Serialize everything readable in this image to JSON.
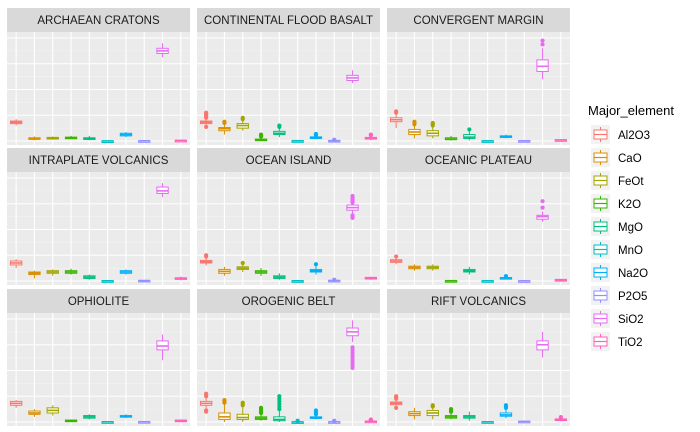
{
  "chart_data": {
    "type": "boxplot",
    "ylim": [
      0,
      80
    ],
    "grid": true,
    "legend": {
      "title": "Major_element",
      "placement": "right",
      "entries": [
        "Al2O3",
        "CaO",
        "FeOt",
        "K2O",
        "MgO",
        "MnO",
        "Na2O",
        "P2O5",
        "SiO2",
        "TiO2"
      ]
    },
    "colors": {
      "Al2O3": "#F8766D",
      "CaO": "#D89000",
      "FeOt": "#A3A500",
      "K2O": "#39B600",
      "MgO": "#00BF7D",
      "MnO": "#00BFC4",
      "Na2O": "#00B0F6",
      "P2O5": "#9590FF",
      "SiO2": "#E76BF3",
      "TiO2": "#FF62BC"
    },
    "categories": [
      "Al2O3",
      "CaO",
      "FeOt",
      "K2O",
      "MgO",
      "MnO",
      "Na2O",
      "P2O5",
      "SiO2",
      "TiO2"
    ],
    "panels": [
      {
        "title": "ARCHAEAN CRATONS",
        "boxes": [
          {
            "min": 12,
            "q1": 13.5,
            "med": 14.5,
            "q3": 15.5,
            "max": 17,
            "out": []
          },
          {
            "min": 0.5,
            "q1": 1.5,
            "med": 2,
            "q3": 2.5,
            "max": 3.5,
            "out": []
          },
          {
            "min": 1,
            "q1": 1.8,
            "med": 2.2,
            "q3": 2.8,
            "max": 3.5,
            "out": []
          },
          {
            "min": 1.5,
            "q1": 2,
            "med": 2.5,
            "q3": 3,
            "max": 4,
            "out": []
          },
          {
            "min": 0.5,
            "q1": 1.2,
            "med": 1.8,
            "q3": 2.5,
            "max": 4,
            "out": []
          },
          {
            "min": 0,
            "q1": 0.03,
            "med": 0.05,
            "q3": 0.08,
            "max": 0.15,
            "out": []
          },
          {
            "min": 3,
            "q1": 4,
            "med": 5,
            "q3": 6,
            "max": 7,
            "out": []
          },
          {
            "min": 0,
            "q1": 0.1,
            "med": 0.15,
            "q3": 0.2,
            "max": 0.4,
            "out": []
          },
          {
            "min": 65,
            "q1": 68,
            "med": 70,
            "q3": 72,
            "max": 76,
            "out": []
          },
          {
            "min": 0.1,
            "q1": 0.3,
            "med": 0.4,
            "q3": 0.55,
            "max": 0.9,
            "out": []
          }
        ]
      },
      {
        "title": "CONTINENTAL FLOOD BASALT",
        "boxes": [
          {
            "min": 12,
            "q1": 13.5,
            "med": 14.5,
            "q3": 15.5,
            "max": 17,
            "out": [
              11,
              18,
              19,
              20,
              21,
              22
            ]
          },
          {
            "min": 5,
            "q1": 8,
            "med": 9.5,
            "q3": 10.5,
            "max": 13,
            "out": [
              14,
              15
            ]
          },
          {
            "min": 8,
            "q1": 10,
            "med": 12,
            "q3": 13.5,
            "max": 16,
            "out": [
              17,
              18
            ]
          },
          {
            "min": 0,
            "q1": 0.5,
            "med": 1,
            "q3": 1.5,
            "max": 3,
            "out": [
              3.5,
              4,
              4.5,
              5
            ]
          },
          {
            "min": 3,
            "q1": 5,
            "med": 6,
            "q3": 7.5,
            "max": 10,
            "out": [
              11,
              12
            ]
          },
          {
            "min": 0,
            "q1": 0.15,
            "med": 0.18,
            "q3": 0.22,
            "max": 0.3,
            "out": []
          },
          {
            "min": 1.5,
            "q1": 2.3,
            "med": 2.7,
            "q3": 3.2,
            "max": 4.2,
            "out": [
              4.5,
              5,
              5.5
            ]
          },
          {
            "min": 0,
            "q1": 0.15,
            "med": 0.25,
            "q3": 0.4,
            "max": 0.7,
            "out": [
              0.8,
              1
            ]
          },
          {
            "min": 45,
            "q1": 47,
            "med": 49,
            "q3": 51,
            "max": 55,
            "out": []
          },
          {
            "min": 0.5,
            "q1": 1.5,
            "med": 2,
            "q3": 2.8,
            "max": 4,
            "out": [
              4.5,
              5
            ]
          }
        ]
      },
      {
        "title": "CONVERGENT MARGIN",
        "boxes": [
          {
            "min": 10,
            "q1": 15,
            "med": 16.5,
            "q3": 18,
            "max": 21,
            "out": [
              22,
              23
            ]
          },
          {
            "min": 2,
            "q1": 5,
            "med": 7,
            "q3": 9,
            "max": 12,
            "out": [
              13,
              14,
              15
            ]
          },
          {
            "min": 2,
            "q1": 4,
            "med": 6,
            "q3": 8,
            "max": 11,
            "out": [
              12,
              13,
              14
            ]
          },
          {
            "min": 0.5,
            "q1": 1,
            "med": 1.5,
            "q3": 2.5,
            "max": 4,
            "out": []
          },
          {
            "min": 0.5,
            "q1": 2,
            "med": 3,
            "q3": 5,
            "max": 8,
            "out": [
              9
            ]
          },
          {
            "min": 0,
            "q1": 0.1,
            "med": 0.12,
            "q3": 0.15,
            "max": 0.2,
            "out": []
          },
          {
            "min": 2,
            "q1": 3,
            "med": 3.5,
            "q3": 4,
            "max": 5,
            "out": []
          },
          {
            "min": 0,
            "q1": 0.1,
            "med": 0.15,
            "q3": 0.25,
            "max": 0.4,
            "out": []
          },
          {
            "min": 48,
            "q1": 54,
            "med": 58,
            "q3": 63,
            "max": 72,
            "out": [
              75,
              78
            ]
          },
          {
            "min": 0.3,
            "q1": 0.6,
            "med": 0.8,
            "q3": 1,
            "max": 1.5,
            "out": []
          }
        ]
      },
      {
        "title": "INTRAPLATE VOLCANICS",
        "boxes": [
          {
            "min": 10,
            "q1": 12.5,
            "med": 14,
            "q3": 15.5,
            "max": 17,
            "out": []
          },
          {
            "min": 2,
            "q1": 5,
            "med": 6,
            "q3": 7,
            "max": 8,
            "out": []
          },
          {
            "min": 4,
            "q1": 6,
            "med": 7,
            "q3": 8,
            "max": 9,
            "out": []
          },
          {
            "min": 5,
            "q1": 6,
            "med": 7,
            "q3": 8,
            "max": 9.5,
            "out": []
          },
          {
            "min": 1,
            "q1": 2,
            "med": 3,
            "q3": 4,
            "max": 5,
            "out": []
          },
          {
            "min": 0,
            "q1": 0.1,
            "med": 0.15,
            "q3": 0.2,
            "max": 0.3,
            "out": []
          },
          {
            "min": 5,
            "q1": 6,
            "med": 7,
            "q3": 8,
            "max": 9,
            "out": []
          },
          {
            "min": 0,
            "q1": 0.2,
            "med": 0.3,
            "q3": 0.5,
            "max": 0.8,
            "out": []
          },
          {
            "min": 65,
            "q1": 68,
            "med": 70,
            "q3": 73,
            "max": 76,
            "out": []
          },
          {
            "min": 0.5,
            "q1": 1.5,
            "med": 2,
            "q3": 2.5,
            "max": 3.5,
            "out": []
          }
        ]
      },
      {
        "title": "OCEAN ISLAND",
        "boxes": [
          {
            "min": 12,
            "q1": 14,
            "med": 15,
            "q3": 16,
            "max": 18,
            "out": [
              19,
              20
            ]
          },
          {
            "min": 4,
            "q1": 6,
            "med": 7.5,
            "q3": 9,
            "max": 11,
            "out": []
          },
          {
            "min": 7,
            "q1": 9,
            "med": 10,
            "q3": 11,
            "max": 13,
            "out": [
              14
            ]
          },
          {
            "min": 4,
            "q1": 6,
            "med": 7,
            "q3": 8,
            "max": 10,
            "out": []
          },
          {
            "min": 1,
            "q1": 2,
            "med": 3,
            "q3": 4,
            "max": 6,
            "out": []
          },
          {
            "min": 0,
            "q1": 0.1,
            "med": 0.15,
            "q3": 0.2,
            "max": 0.3,
            "out": []
          },
          {
            "min": 5,
            "q1": 7,
            "med": 8,
            "q3": 9,
            "max": 12,
            "out": [
              13
            ]
          },
          {
            "min": 0,
            "q1": 0.2,
            "med": 0.35,
            "q3": 0.5,
            "max": 0.8,
            "out": [
              1
            ]
          },
          {
            "min": 52,
            "q1": 55,
            "med": 57,
            "q3": 59,
            "max": 60,
            "out": [
              49,
              50,
              51,
              61,
              62,
              63,
              64,
              65,
              66
            ]
          },
          {
            "min": 1,
            "q1": 1.8,
            "med": 2.3,
            "q3": 2.8,
            "max": 3.5,
            "out": []
          }
        ]
      },
      {
        "title": "OCEANIC PLATEAU",
        "boxes": [
          {
            "min": 13,
            "q1": 14.5,
            "med": 15.5,
            "q3": 16.5,
            "max": 18,
            "out": [
              19
            ]
          },
          {
            "min": 8,
            "q1": 9.5,
            "med": 10.5,
            "q3": 11.5,
            "max": 13,
            "out": []
          },
          {
            "min": 8,
            "q1": 9.5,
            "med": 10.5,
            "q3": 11.5,
            "max": 13,
            "out": []
          },
          {
            "min": 0,
            "q1": 0.1,
            "med": 0.2,
            "q3": 0.3,
            "max": 0.6,
            "out": []
          },
          {
            "min": 5,
            "q1": 7,
            "med": 8,
            "q3": 9,
            "max": 11,
            "out": []
          },
          {
            "min": 0,
            "q1": 0.15,
            "med": 0.18,
            "q3": 0.22,
            "max": 0.3,
            "out": []
          },
          {
            "min": 1.5,
            "q1": 2,
            "med": 2.3,
            "q3": 2.7,
            "max": 3.3,
            "out": [
              3.8
            ]
          },
          {
            "min": 0,
            "q1": 0.08,
            "med": 0.12,
            "q3": 0.18,
            "max": 0.3,
            "out": []
          },
          {
            "min": 46,
            "q1": 48,
            "med": 50,
            "q3": 51,
            "max": 54,
            "out": [
              57,
              62
            ]
          },
          {
            "min": 0.5,
            "q1": 0.8,
            "med": 1,
            "q3": 1.2,
            "max": 1.6,
            "out": []
          }
        ]
      },
      {
        "title": "OPHIOLITE",
        "boxes": [
          {
            "min": 11,
            "q1": 13,
            "med": 14.5,
            "q3": 16,
            "max": 17,
            "out": []
          },
          {
            "min": 4,
            "q1": 6,
            "med": 7,
            "q3": 8.5,
            "max": 10,
            "out": []
          },
          {
            "min": 5,
            "q1": 7,
            "med": 9,
            "q3": 11,
            "max": 13,
            "out": []
          },
          {
            "min": 0,
            "q1": 0.5,
            "med": 1,
            "q3": 1.5,
            "max": 2,
            "out": []
          },
          {
            "min": 2,
            "q1": 3,
            "med": 4,
            "q3": 5,
            "max": 6,
            "out": []
          },
          {
            "min": 0,
            "q1": 0.1,
            "med": 0.15,
            "q3": 0.2,
            "max": 0.25,
            "out": []
          },
          {
            "min": 3,
            "q1": 4,
            "med": 4.5,
            "q3": 5,
            "max": 6,
            "out": []
          },
          {
            "min": 0,
            "q1": 0.1,
            "med": 0.2,
            "q3": 0.3,
            "max": 0.5,
            "out": []
          },
          {
            "min": 48,
            "q1": 56,
            "med": 59,
            "q3": 63,
            "max": 68,
            "out": []
          },
          {
            "min": 0.3,
            "q1": 0.8,
            "med": 1,
            "q3": 1.5,
            "max": 2,
            "out": []
          }
        ]
      },
      {
        "title": "OROGENIC BELT",
        "boxes": [
          {
            "min": 10,
            "q1": 13,
            "med": 14.5,
            "q3": 16,
            "max": 19,
            "out": [
              8,
              9,
              20,
              21,
              22
            ]
          },
          {
            "min": 0,
            "q1": 2,
            "med": 4,
            "q3": 7,
            "max": 14,
            "out": [
              15,
              16,
              17
            ]
          },
          {
            "min": 0,
            "q1": 2,
            "med": 3.5,
            "q3": 6,
            "max": 12,
            "out": [
              13,
              14,
              15
            ]
          },
          {
            "min": 1,
            "q1": 2,
            "med": 3,
            "q3": 4,
            "max": 6,
            "out": [
              7,
              8,
              9,
              10,
              11
            ]
          },
          {
            "min": 0,
            "q1": 1,
            "med": 2,
            "q3": 4,
            "max": 9,
            "out": [
              10,
              12,
              14,
              16,
              18,
              20
            ]
          },
          {
            "min": 0,
            "q1": 0.05,
            "med": 0.08,
            "q3": 0.12,
            "max": 0.2,
            "out": [
              0.5,
              1
            ]
          },
          {
            "min": 2,
            "q1": 3,
            "med": 3.5,
            "q3": 4,
            "max": 5.5,
            "out": [
              6,
              7,
              8,
              9
            ]
          },
          {
            "min": 0,
            "q1": 0.1,
            "med": 0.15,
            "q3": 0.2,
            "max": 0.35,
            "out": [
              0.5,
              1
            ]
          },
          {
            "min": 62,
            "q1": 67,
            "med": 70,
            "q3": 73,
            "max": 79,
            "out": [
              42,
              44,
              46,
              48,
              50,
              52,
              54,
              56,
              58
            ]
          },
          {
            "min": 0,
            "q1": 0.3,
            "med": 0.5,
            "q3": 0.7,
            "max": 1.2,
            "out": [
              1.5,
              2
            ]
          }
        ]
      },
      {
        "title": "RIFT VOLCANICS",
        "boxes": [
          {
            "min": 12,
            "q1": 13.5,
            "med": 14.5,
            "q3": 15.5,
            "max": 17,
            "out": [
              11,
              18,
              19,
              20
            ]
          },
          {
            "min": 2,
            "q1": 5,
            "med": 6.5,
            "q3": 8,
            "max": 11,
            "out": []
          },
          {
            "min": 2,
            "q1": 5,
            "med": 7,
            "q3": 9,
            "max": 11,
            "out": [
              12,
              13
            ]
          },
          {
            "min": 2,
            "q1": 3,
            "med": 4,
            "q3": 5,
            "max": 7,
            "out": [
              8,
              9,
              10
            ]
          },
          {
            "min": 1,
            "q1": 3,
            "med": 4,
            "q3": 5,
            "max": 8,
            "out": []
          },
          {
            "min": 0,
            "q1": 0.1,
            "med": 0.15,
            "q3": 0.2,
            "max": 0.3,
            "out": []
          },
          {
            "min": 3,
            "q1": 4.5,
            "med": 5.5,
            "q3": 7,
            "max": 10,
            "out": [
              11,
              12,
              13
            ]
          },
          {
            "min": 0,
            "q1": 0.2,
            "med": 0.4,
            "q3": 0.6,
            "max": 1,
            "out": []
          },
          {
            "min": 50,
            "q1": 56,
            "med": 60,
            "q3": 63,
            "max": 70,
            "out": []
          },
          {
            "min": 0.5,
            "q1": 1.2,
            "med": 1.8,
            "q3": 2.4,
            "max": 3.5,
            "out": [
              3.8
            ]
          }
        ]
      }
    ]
  }
}
